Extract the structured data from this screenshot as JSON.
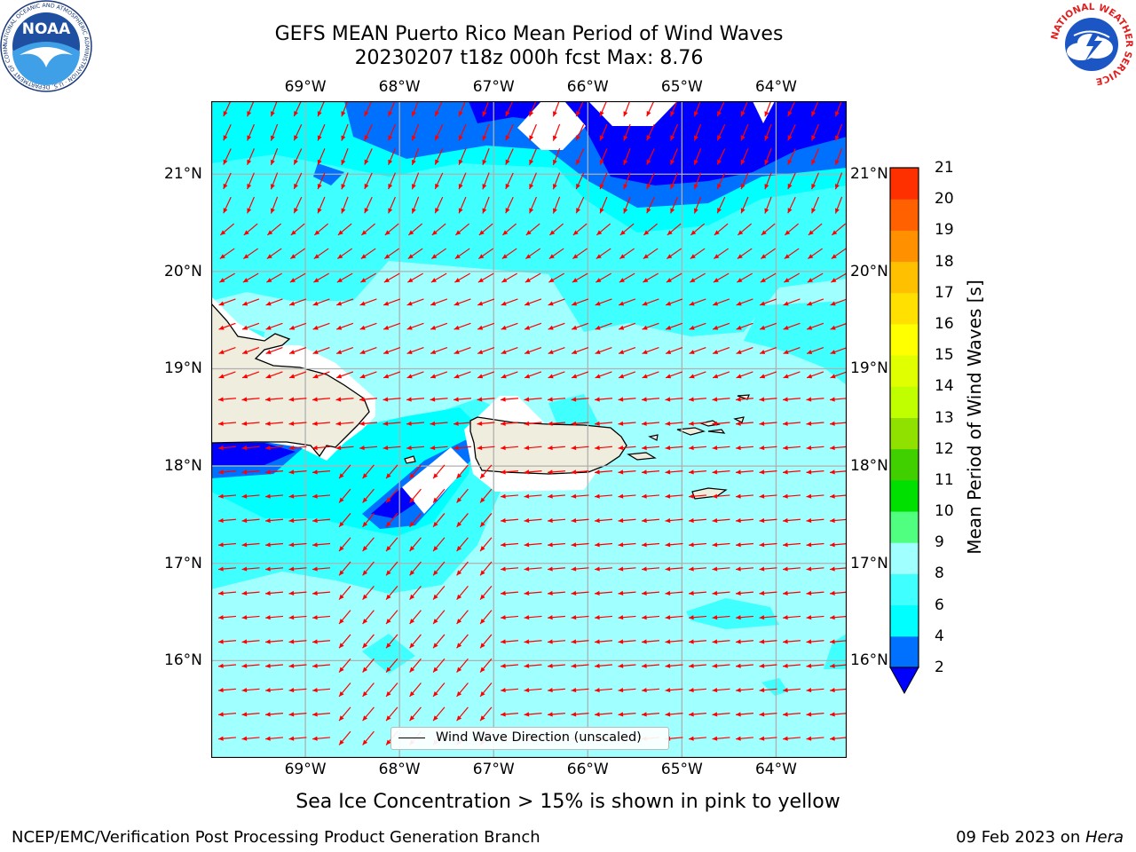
{
  "title": {
    "line1": "GEFS MEAN Puerto Rico Mean Period of Wind Waves",
    "line2": "20230207 t18z 000h fcst   Max: 8.76"
  },
  "logos": {
    "noaa_text": "NOAA",
    "noaa_ring": "NATIONAL OCEANIC AND ATMOSPHERIC ADMINISTRATION · U.S. DEPARTMENT OF COMMERCE",
    "nws_ring": "NATIONAL WEATHER SERVICE"
  },
  "map": {
    "lon_labels": [
      "69°W",
      "68°W",
      "67°W",
      "66°W",
      "65°W",
      "64°W"
    ],
    "lat_labels": [
      "21°N",
      "20°N",
      "19°N",
      "18°N",
      "17°N",
      "16°N"
    ],
    "lon_range": [
      -70.0,
      -63.25
    ],
    "lat_range": [
      15.0,
      21.75
    ],
    "grid": true,
    "colors": {
      "level_lt_2": "#0000ff",
      "level_2_4": "#0070ff",
      "level_4_6": "#00ffff",
      "level_6_8": "#40ffff",
      "level_8_9": "#a0ffff",
      "land": "#efedde",
      "arrows": "#ff0000"
    }
  },
  "colorbar": {
    "label": "Mean Period of Wind Waves [s]",
    "ticks": [
      "2",
      "4",
      "6",
      "8",
      "9",
      "10",
      "11",
      "12",
      "13",
      "14",
      "15",
      "16",
      "17",
      "18",
      "19",
      "20",
      "21"
    ],
    "colors": [
      "#0070ff",
      "#00ffff",
      "#40ffff",
      "#a0ffff",
      "#50ff80",
      "#00e000",
      "#40d000",
      "#90e000",
      "#c0ff00",
      "#e0ff00",
      "#ffff00",
      "#ffe000",
      "#ffc000",
      "#ff9000",
      "#ff6000",
      "#ff3000"
    ],
    "under_color": "#0000ff",
    "over_color": "#ff0000"
  },
  "legend": {
    "label": "Wind Wave Direction (unscaled)"
  },
  "note": "Sea Ice Concentration > 15% is shown in pink to yellow",
  "footer": {
    "left": "NCEP/EMC/Verification Post Processing Product Generation Branch",
    "date": "09 Feb 2023 on ",
    "host": "Hera"
  }
}
